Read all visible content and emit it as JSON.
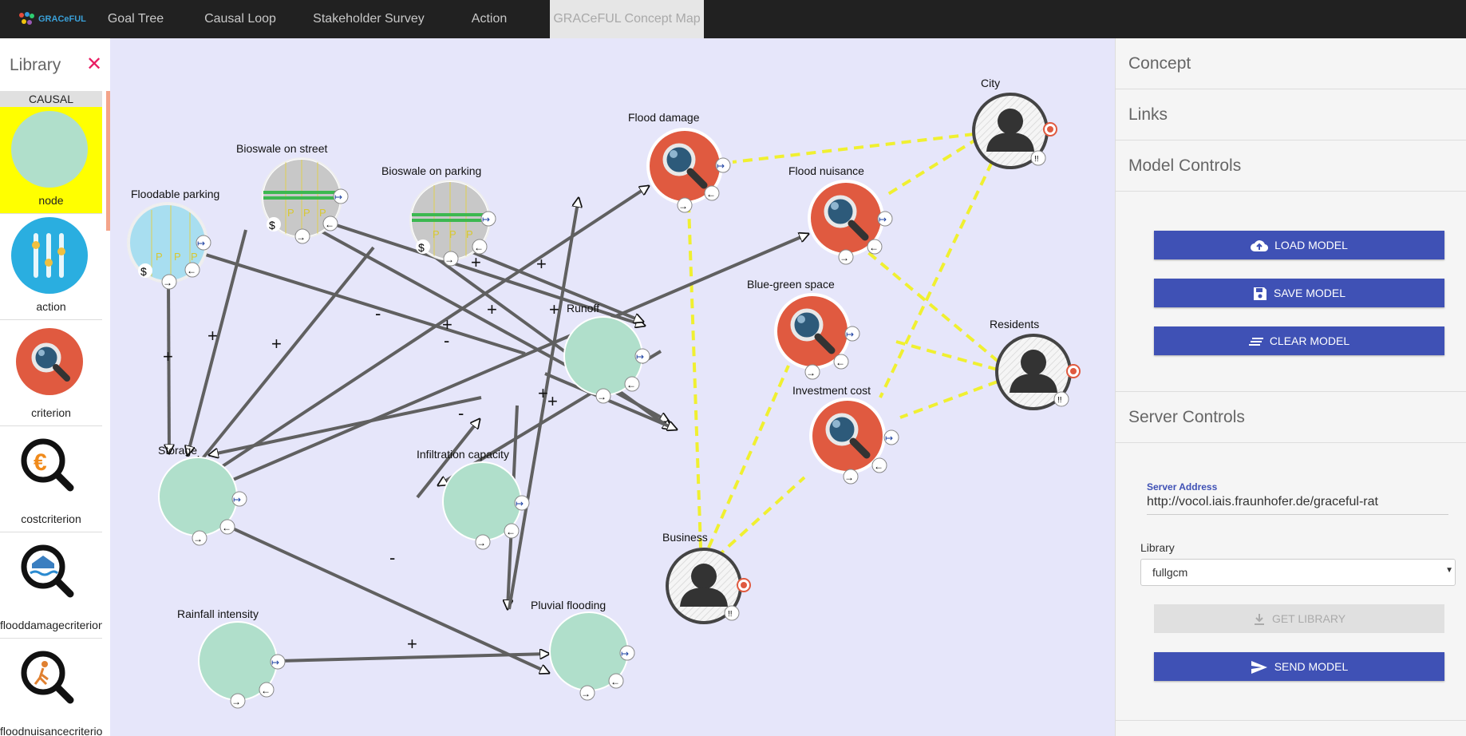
{
  "app": {
    "logo_text": "GRACeFUL"
  },
  "nav": {
    "tabs": [
      {
        "label": "Goal Tree"
      },
      {
        "label": "Causal Loop Diagram"
      },
      {
        "label": "Stakeholder Survey"
      },
      {
        "label": "Action Assessment"
      },
      {
        "label": "GRACeFUL Concept Map"
      }
    ]
  },
  "library": {
    "title": "Library",
    "category": "CAUSAL",
    "items": [
      {
        "label": "node",
        "icon": "node-icon",
        "selected": true
      },
      {
        "label": "action",
        "icon": "sliders-icon"
      },
      {
        "label": "criterion",
        "icon": "magnifier-icon"
      },
      {
        "label": "costcriterion",
        "icon": "euro-magnifier-icon"
      },
      {
        "label": "flooddamagecriterion",
        "icon": "flood-magnifier-icon"
      },
      {
        "label": "floodnuisancecriterion",
        "icon": "person-magnifier-icon"
      }
    ]
  },
  "diagram": {
    "nodes": [
      {
        "id": "floodable_parking",
        "label": "Floodable parking",
        "kind": "action"
      },
      {
        "id": "bioswale_street",
        "label": "Bioswale on street",
        "kind": "action"
      },
      {
        "id": "bioswale_parking",
        "label": "Bioswale on parking",
        "kind": "action"
      },
      {
        "id": "flood_damage",
        "label": "Flood damage",
        "kind": "criterion"
      },
      {
        "id": "flood_nuisance",
        "label": "Flood nuisance",
        "kind": "criterion"
      },
      {
        "id": "blue_green",
        "label": "Blue-green space",
        "kind": "criterion"
      },
      {
        "id": "investment",
        "label": "Investment cost",
        "kind": "criterion"
      },
      {
        "id": "runoff",
        "label": "Runoff",
        "kind": "node"
      },
      {
        "id": "storage",
        "label": "Storage",
        "kind": "node"
      },
      {
        "id": "infiltration",
        "label": "Infiltration capacity",
        "kind": "node"
      },
      {
        "id": "rainfall",
        "label": "Rainfall intensity",
        "kind": "node"
      },
      {
        "id": "pluvial",
        "label": "Pluvial flooding",
        "kind": "node"
      },
      {
        "id": "city",
        "label": "City",
        "kind": "stakeholder"
      },
      {
        "id": "residents",
        "label": "Residents",
        "kind": "stakeholder"
      },
      {
        "id": "business",
        "label": "Business",
        "kind": "stakeholder"
      }
    ],
    "edges": [
      {
        "from": "floodable_parking",
        "to": "storage",
        "sign": "+"
      },
      {
        "from": "bioswale_street",
        "to": "storage",
        "sign": "+"
      },
      {
        "from": "bioswale_parking",
        "to": "storage",
        "sign": "+"
      },
      {
        "from": "floodable_parking",
        "to": "runoff",
        "sign": "-"
      },
      {
        "from": "bioswale_street",
        "to": "blue_green",
        "sign": "+"
      },
      {
        "from": "bioswale_street",
        "to": "investment",
        "sign": "+"
      },
      {
        "from": "bioswale_parking",
        "to": "blue_green",
        "sign": "+"
      },
      {
        "from": "bioswale_parking",
        "to": "investment",
        "sign": "+"
      },
      {
        "from": "storage",
        "to": "flood_damage",
        "sign": "-"
      },
      {
        "from": "storage",
        "to": "flood_nuisance",
        "sign": "-"
      },
      {
        "from": "storage",
        "to": "pluvial",
        "sign": "-"
      },
      {
        "from": "runoff",
        "to": "storage",
        "sign": "+"
      },
      {
        "from": "runoff",
        "to": "investment",
        "sign": "+"
      },
      {
        "from": "infiltration",
        "to": "runoff",
        "sign": "-"
      },
      {
        "from": "blue_green",
        "to": "infiltration",
        "sign": "+"
      },
      {
        "from": "runoff",
        "to": "pluvial",
        "sign": "+"
      },
      {
        "from": "rainfall",
        "to": "pluvial",
        "sign": "+"
      },
      {
        "from": "pluvial",
        "to": "flood_damage",
        "sign": "+"
      },
      {
        "from": "city",
        "to": "flood_damage",
        "sign": ""
      },
      {
        "from": "city",
        "to": "flood_nuisance",
        "sign": ""
      },
      {
        "from": "city",
        "to": "investment",
        "sign": ""
      },
      {
        "from": "residents",
        "to": "flood_nuisance",
        "sign": ""
      },
      {
        "from": "residents",
        "to": "blue_green",
        "sign": ""
      },
      {
        "from": "residents",
        "to": "investment",
        "sign": ""
      },
      {
        "from": "business",
        "to": "flood_damage",
        "sign": ""
      },
      {
        "from": "business",
        "to": "blue_green",
        "sign": ""
      },
      {
        "from": "business",
        "to": "investment",
        "sign": ""
      }
    ],
    "colors": {
      "canvas": "#e6e6fa",
      "node": "#b0dfcb",
      "criterion": "#e05a40",
      "action": "#a8def0",
      "stakeholder_link": "#f0f030",
      "edge": "#606060"
    }
  },
  "panel": {
    "concept": "Concept",
    "links": "Links",
    "model_controls": "Model Controls",
    "load_model": "LOAD MODEL",
    "save_model": "SAVE MODEL",
    "clear_model": "CLEAR MODEL",
    "server_controls": "Server Controls",
    "server_address_label": "Server Address",
    "server_address_value": "http://vocol.iais.fraunhofer.de/graceful-rat",
    "library_label": "Library",
    "library_value": "fullgcm",
    "get_library": "GET LIBRARY",
    "send_model": "SEND MODEL"
  }
}
